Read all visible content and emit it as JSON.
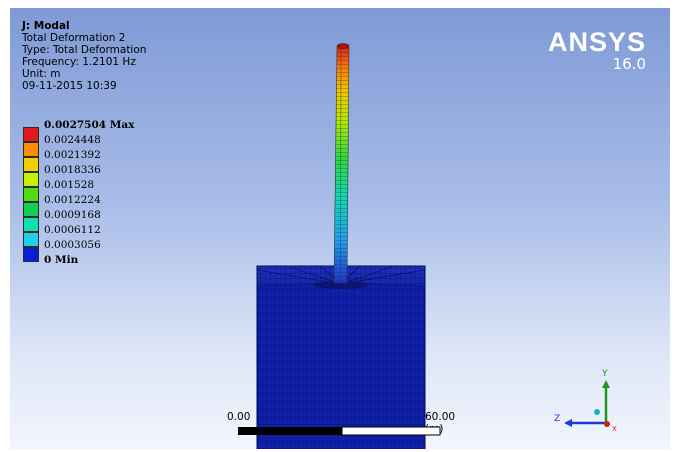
{
  "header": {
    "title": "J: Modal",
    "result_name": "Total Deformation 2",
    "type": "Type: Total Deformation",
    "frequency": "Frequency: 1.2101 Hz",
    "unit": "Unit: m",
    "timestamp": "09-11-2015 10:39"
  },
  "legend": {
    "items": [
      {
        "label": "0.0027504 Max",
        "color": "#e01a1a",
        "bold": true
      },
      {
        "label": "0.0024448",
        "color": "#ff8c00",
        "bold": false
      },
      {
        "label": "0.0021392",
        "color": "#f0d000",
        "bold": false
      },
      {
        "label": "0.0018336",
        "color": "#c8f000",
        "bold": false
      },
      {
        "label": "0.001528",
        "color": "#50dc10",
        "bold": false
      },
      {
        "label": "0.0012224",
        "color": "#10d050",
        "bold": false
      },
      {
        "label": "0.0009168",
        "color": "#10e0b0",
        "bold": false
      },
      {
        "label": "0.0006112",
        "color": "#20d0e8",
        "bold": false
      },
      {
        "label": "0.0003056",
        "color": "#20a0f0",
        "bold": false
      },
      {
        "label": "0 Min",
        "color": "#0a1ed8",
        "bold": true
      }
    ]
  },
  "logo": {
    "name": "ANSYS",
    "version": "16.0"
  },
  "scale": {
    "start": "0.00",
    "end": "60.00 (m)"
  },
  "triad": {
    "y": "Y",
    "z": "Z",
    "x": "X"
  },
  "colors": {
    "base": "#0f1fa8",
    "mesh_line": "#000a50",
    "triad_y": "#1a9a1a",
    "triad_z": "#1a3ad0",
    "triad_x": "#d01a1a"
  }
}
